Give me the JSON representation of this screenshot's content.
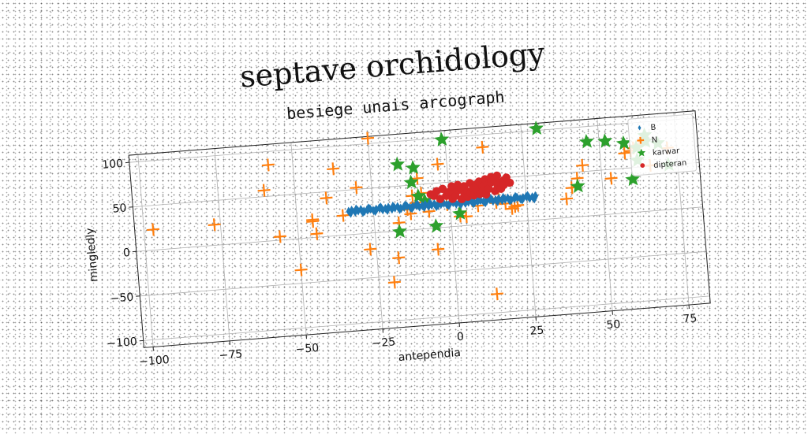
{
  "chart_data": {
    "type": "scatter",
    "title": "septave orchidology",
    "subtitle": "besiege unais arcograph",
    "xlabel": "antependia",
    "ylabel": "mingledly",
    "xlim": [
      -103,
      82
    ],
    "ylim": [
      -108,
      108
    ],
    "xticks": [
      -100,
      -75,
      -50,
      -25,
      0,
      25,
      50,
      75
    ],
    "yticks": [
      -100,
      -50,
      0,
      50,
      100
    ],
    "grid": true,
    "legend_position": "top-right",
    "series": [
      {
        "name": "B",
        "marker": "diamond",
        "color": "#1f77b4",
        "x": [
          -33,
          -32,
          -31,
          -30,
          -29,
          -28,
          -27,
          -26,
          -25,
          -24,
          -23,
          -22,
          -21,
          -20,
          -19,
          -18,
          -17,
          -16,
          -15,
          -14,
          -13,
          -12,
          -11,
          -10,
          -9,
          -8,
          -7,
          -6,
          -5,
          -4,
          -3,
          -2,
          -1,
          0,
          1,
          2,
          3,
          4,
          5,
          6,
          7,
          8,
          9,
          10,
          11,
          12,
          13,
          14,
          15,
          16,
          17,
          18,
          19,
          20,
          21,
          22,
          23,
          24,
          25,
          26,
          27,
          28,
          -32.5,
          -30.5,
          -28.5,
          -26.5,
          -24.5,
          -22.5,
          -20.5,
          -18.5,
          -16.5,
          -14.5,
          -12.5,
          -10.5,
          -8.5,
          -6.5,
          -4.5,
          -2.5,
          -0.5,
          1.5,
          3.5,
          5.5,
          7.5,
          9.5,
          11.5,
          13.5,
          15.5,
          17.5,
          19.5,
          21.5,
          23.5,
          25.5,
          27.5
        ],
        "y": [
          26,
          27,
          25,
          26,
          27,
          25,
          26,
          27,
          25,
          26,
          27,
          25,
          26,
          27,
          25,
          26,
          27,
          25,
          26,
          27,
          25,
          26,
          27,
          25,
          26,
          27,
          25,
          26,
          27,
          25,
          26,
          27,
          25,
          26,
          27,
          25,
          26,
          27,
          25,
          26,
          27,
          25,
          26,
          27,
          25,
          26,
          27,
          25,
          26,
          27,
          25,
          26,
          27,
          25,
          26,
          27,
          25,
          26,
          27,
          25,
          26,
          27,
          24,
          28,
          24,
          28,
          24,
          28,
          24,
          28,
          24,
          28,
          24,
          28,
          24,
          28,
          24,
          28,
          24,
          28,
          24,
          28,
          24,
          28,
          24,
          28,
          24,
          28,
          24,
          28,
          24,
          28,
          24
        ]
      },
      {
        "name": "N",
        "marker": "plus",
        "color": "#ff7f0e",
        "x": [
          -97,
          -77,
          -60,
          -58,
          -56,
          -50,
          -45,
          -45,
          -44,
          -40,
          -37,
          -35,
          -30,
          -27,
          -26,
          -25,
          -20,
          -18,
          -17,
          -14,
          -13,
          -12,
          -11,
          -10,
          -9,
          -7,
          -5,
          -4,
          -3,
          -1,
          3,
          5,
          9,
          10,
          12,
          13,
          15,
          16,
          18,
          20,
          21,
          22,
          38,
          40,
          42,
          44,
          53,
          58,
          60,
          61,
          63,
          66,
          72
        ],
        "y": [
          23,
          23,
          57,
          85,
          4,
          -35,
          20,
          18,
          4,
          43,
          75,
          22,
          52,
          -18,
          111,
          106,
          -57,
          -30,
          9,
          23,
          18,
          38,
          30,
          57,
          40,
          19,
          -24,
          28,
          71,
          25,
          11,
          10,
          21,
          112,
          86,
          -79,
          23,
          28,
          21,
          15,
          17,
          18,
          21,
          33,
          43,
          57,
          40,
          67,
          69,
          72,
          75,
          51,
          69
        ]
      },
      {
        "name": "karwar",
        "marker": "star",
        "color": "#2ca02c",
        "x": [
          -17,
          -16,
          -12,
          -11,
          -10,
          -8,
          -5,
          -1,
          3,
          30,
          42,
          46,
          46,
          49,
          52,
          58,
          60,
          62,
          62,
          65,
          65,
          69,
          72
        ],
        "y": [
          -1,
          74,
          53,
          69,
          37,
          31,
          2,
          98,
          14,
          102,
          34,
          83,
          115,
          113,
          82,
          78,
          37,
          72,
          58,
          78,
          85,
          75,
          50
        ]
      },
      {
        "name": "dipteran",
        "marker": "circle",
        "color": "#d62728",
        "x": [
          -6,
          -5,
          -4,
          -3,
          -2,
          -1,
          0,
          1,
          1,
          2,
          2,
          3,
          3,
          4,
          4,
          5,
          5,
          6,
          6,
          7,
          7,
          8,
          8,
          9,
          9,
          10,
          10,
          11,
          11,
          12,
          12,
          13,
          13,
          14,
          14,
          15,
          15,
          16,
          16,
          17,
          17,
          18,
          18,
          19,
          20
        ],
        "y": [
          38,
          36,
          41,
          32,
          43,
          35,
          39,
          31,
          45,
          37,
          34,
          46,
          40,
          30,
          42,
          35,
          44,
          38,
          32,
          47,
          36,
          41,
          33,
          45,
          39,
          34,
          48,
          42,
          37,
          50,
          33,
          44,
          39,
          52,
          46,
          36,
          49,
          41,
          53,
          45,
          38,
          47,
          42,
          50,
          44
        ]
      }
    ]
  }
}
